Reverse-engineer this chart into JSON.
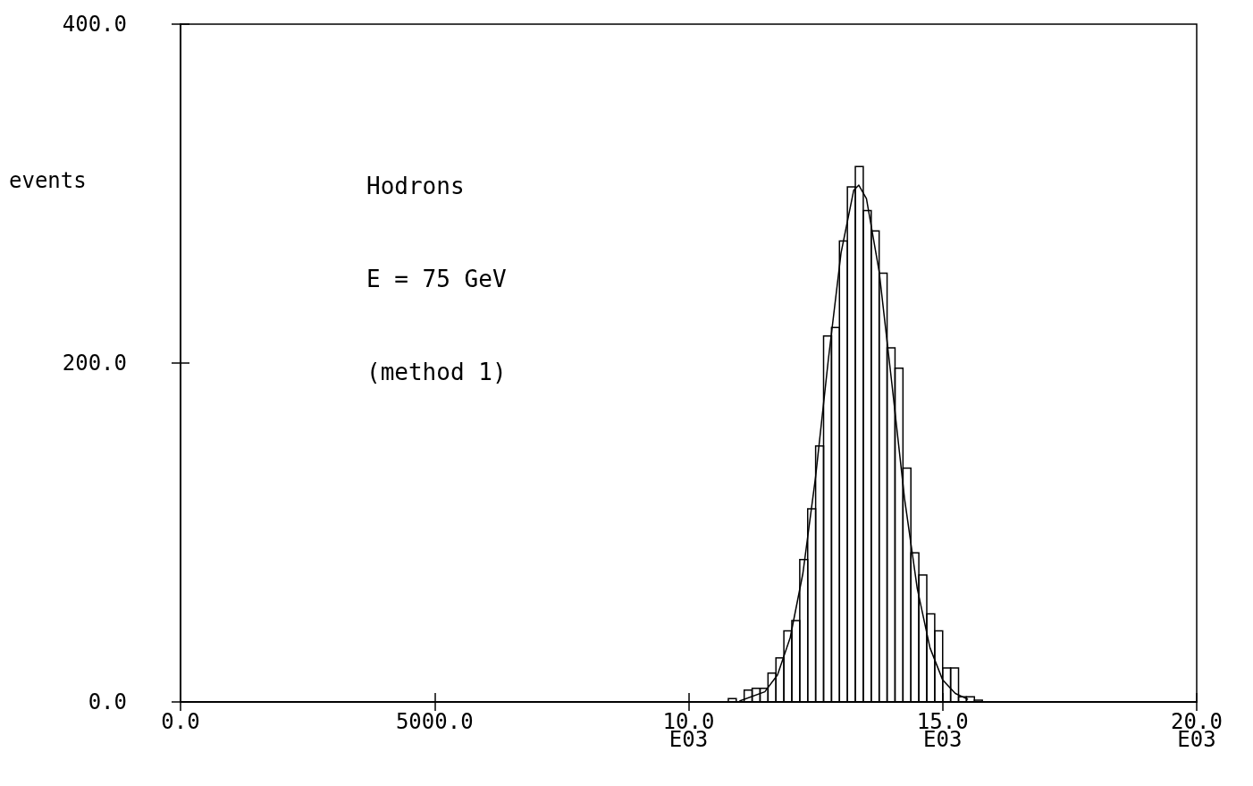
{
  "chart_data": {
    "type": "histogram",
    "ylabel": "events",
    "annotations": [
      "Hodrons",
      "E = 75 GeV",
      "(method 1)"
    ],
    "bins": [
      10781.25,
      10937.5,
      11093.75,
      11250,
      11406.25,
      11562.5,
      11718.75,
      11875,
      12031.25,
      12187.5,
      12343.75,
      12500,
      12656.25,
      12812.5,
      12968.75,
      13125,
      13281.25,
      13437.5,
      13593.75,
      13750,
      13906.25,
      14062.5,
      14218.75,
      14375,
      14531.25,
      14687.5,
      14843.75,
      15000,
      15156.25,
      15312.5,
      15468.75,
      15625,
      15781.25
    ],
    "values": [
      2,
      0,
      7,
      8,
      8,
      17,
      26,
      42,
      48,
      84,
      114,
      151,
      216,
      221,
      272,
      304,
      316,
      290,
      278,
      253,
      209,
      197,
      138,
      88,
      75,
      52,
      42,
      20,
      20,
      3,
      3,
      1
    ],
    "color": "#000000",
    "series": [
      {
        "type": "line",
        "color": "#000000",
        "x": [
          11000,
          11500,
          11750,
          12000,
          12250,
          12500,
          12750,
          13000,
          13250,
          13350,
          13500,
          13750,
          14000,
          14250,
          14500,
          14750,
          15000,
          15250,
          15500
        ],
        "values": [
          0.5,
          6,
          16,
          38,
          76,
          133,
          202,
          265,
          302,
          305,
          297,
          254,
          188,
          120,
          67,
          32,
          13,
          5,
          1.5
        ]
      }
    ],
    "xlim": [
      0,
      20000
    ],
    "ylim": [
      0,
      400
    ],
    "xticks": [
      {
        "value": 0,
        "label": "0.0"
      },
      {
        "value": 5000,
        "label": "5000.0"
      },
      {
        "value": 10000,
        "label": "10.0\nE03"
      },
      {
        "value": 15000,
        "label": "15.0\nE03"
      },
      {
        "value": 20000,
        "label": "20.0\nE03"
      }
    ],
    "yticks": [
      {
        "value": 0,
        "label": "0.0"
      },
      {
        "value": 200,
        "label": "200.0"
      },
      {
        "value": 400,
        "label": "400.0"
      }
    ],
    "grid": false,
    "marker": "none",
    "line_style": "solid"
  }
}
